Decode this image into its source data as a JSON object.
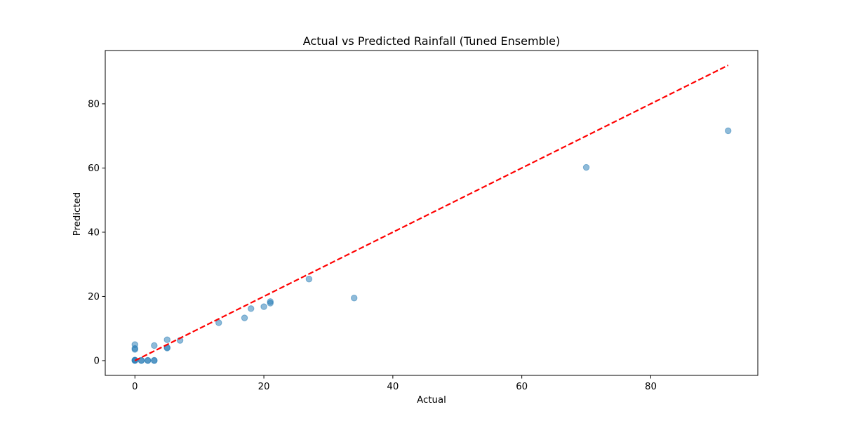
{
  "chart_data": {
    "type": "scatter",
    "title": "Actual vs Predicted Rainfall (Tuned Ensemble)",
    "xlabel": "Actual",
    "ylabel": "Predicted",
    "xlim": [
      -4.6,
      96.6
    ],
    "ylim": [
      -4.6,
      96.6
    ],
    "xticks": [
      0,
      20,
      40,
      60,
      80
    ],
    "yticks": [
      0,
      20,
      40,
      60,
      80
    ],
    "xtick_labels": [
      "0",
      "20",
      "40",
      "60",
      "80"
    ],
    "ytick_labels": [
      "0",
      "20",
      "40",
      "60",
      "80"
    ],
    "grid": false,
    "legend": "none",
    "colors": {
      "points": "#1f77b4",
      "reference_line": "#ff0000"
    },
    "reference_line": {
      "x": [
        0,
        92
      ],
      "y": [
        0,
        92
      ],
      "style": "dashed"
    },
    "series": [
      {
        "points": [
          {
            "x": 0,
            "y": 0
          },
          {
            "x": 0,
            "y": 0.1
          },
          {
            "x": 0,
            "y": 0.2
          },
          {
            "x": 0,
            "y": 3.5
          },
          {
            "x": 0,
            "y": 3.8
          },
          {
            "x": 0,
            "y": 5.0
          },
          {
            "x": 1,
            "y": 0
          },
          {
            "x": 1,
            "y": 0.1
          },
          {
            "x": 2,
            "y": 0
          },
          {
            "x": 2,
            "y": 0.1
          },
          {
            "x": 3,
            "y": 0
          },
          {
            "x": 3,
            "y": 0.1
          },
          {
            "x": 3,
            "y": 4.7
          },
          {
            "x": 5,
            "y": 3.9
          },
          {
            "x": 5,
            "y": 4.1
          },
          {
            "x": 5,
            "y": 6.5
          },
          {
            "x": 7,
            "y": 6.3
          },
          {
            "x": 13,
            "y": 11.8
          },
          {
            "x": 17,
            "y": 13.3
          },
          {
            "x": 18,
            "y": 16.2
          },
          {
            "x": 20,
            "y": 16.8
          },
          {
            "x": 21,
            "y": 17.9
          },
          {
            "x": 21,
            "y": 18.4
          },
          {
            "x": 27,
            "y": 25.4
          },
          {
            "x": 34,
            "y": 19.5
          },
          {
            "x": 70,
            "y": 60.2
          },
          {
            "x": 92,
            "y": 71.6
          }
        ]
      }
    ]
  }
}
